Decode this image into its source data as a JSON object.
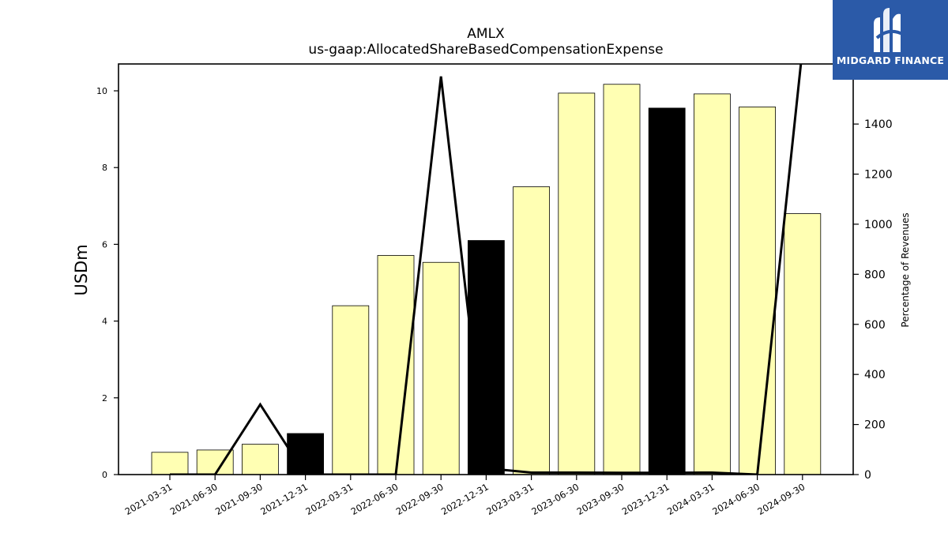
{
  "chart_data": {
    "type": "bar",
    "title": "AMLX",
    "subtitle": "us-gaap:AllocatedShareBasedCompensationExpense",
    "ylabel": "USDm",
    "y2label": "Percentage of Revenues",
    "ylim": [
      0,
      10.7
    ],
    "y2lim": [
      0,
      1640
    ],
    "yticks": [
      0,
      2,
      4,
      6,
      8,
      10
    ],
    "y2ticks": [
      0,
      200,
      400,
      600,
      800,
      1000,
      1200,
      1400
    ],
    "categories": [
      "2021-03-31",
      "2021-06-30",
      "2021-09-30",
      "2021-12-31",
      "2022-03-31",
      "2022-06-30",
      "2022-09-30",
      "2022-12-31",
      "2023-03-31",
      "2023-06-30",
      "2023-09-30",
      "2023-12-31",
      "2024-03-31",
      "2024-06-30",
      "2024-09-30"
    ],
    "values": [
      0.58,
      0.64,
      0.79,
      1.07,
      4.4,
      5.71,
      5.53,
      6.1,
      7.5,
      9.94,
      10.17,
      9.55,
      9.92,
      9.58,
      6.8
    ],
    "highlight": [
      false,
      false,
      false,
      true,
      false,
      false,
      false,
      true,
      false,
      false,
      false,
      true,
      false,
      false,
      false
    ],
    "bar_color": "#ffffb3",
    "highlight_color": "#000000",
    "line_series": {
      "values": [
        0,
        0,
        280,
        0,
        0,
        0,
        1590,
        25,
        8,
        8,
        7,
        7,
        8,
        0,
        1700
      ],
      "color": "#000000"
    }
  },
  "logo": {
    "text": "MIDGARD FINANCE",
    "background": "#2b5aa8"
  }
}
